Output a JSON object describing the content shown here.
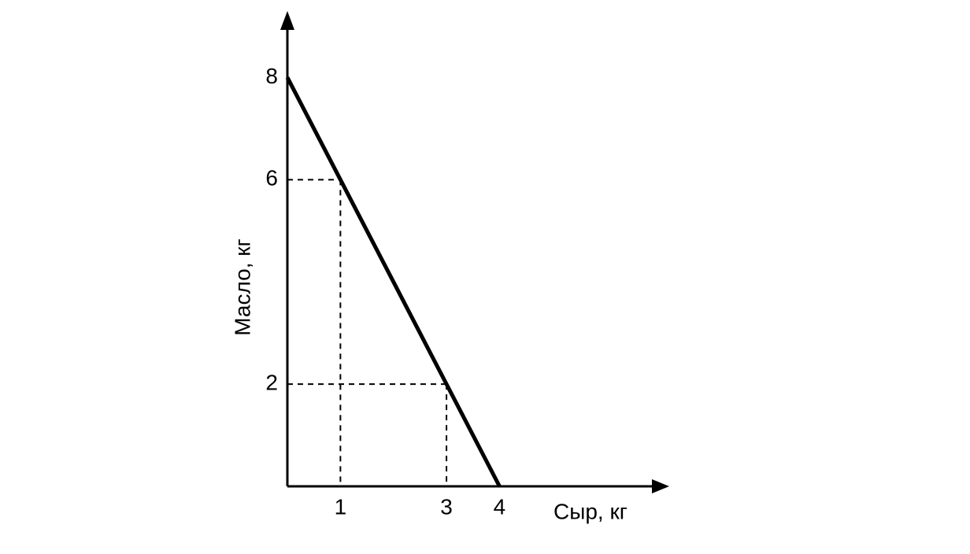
{
  "chart_data": {
    "type": "line",
    "x_label": "Сыр, кг",
    "y_label": "Масло, кг",
    "x": [
      0,
      1,
      3,
      4
    ],
    "y": [
      8,
      6,
      2,
      0
    ],
    "color": "#000000",
    "xlim": [
      0,
      7.2
    ],
    "ylim": [
      0,
      9.3
    ],
    "xticks": [
      1,
      3,
      4
    ],
    "yticks": [
      2,
      6,
      8
    ],
    "guides": true
  }
}
